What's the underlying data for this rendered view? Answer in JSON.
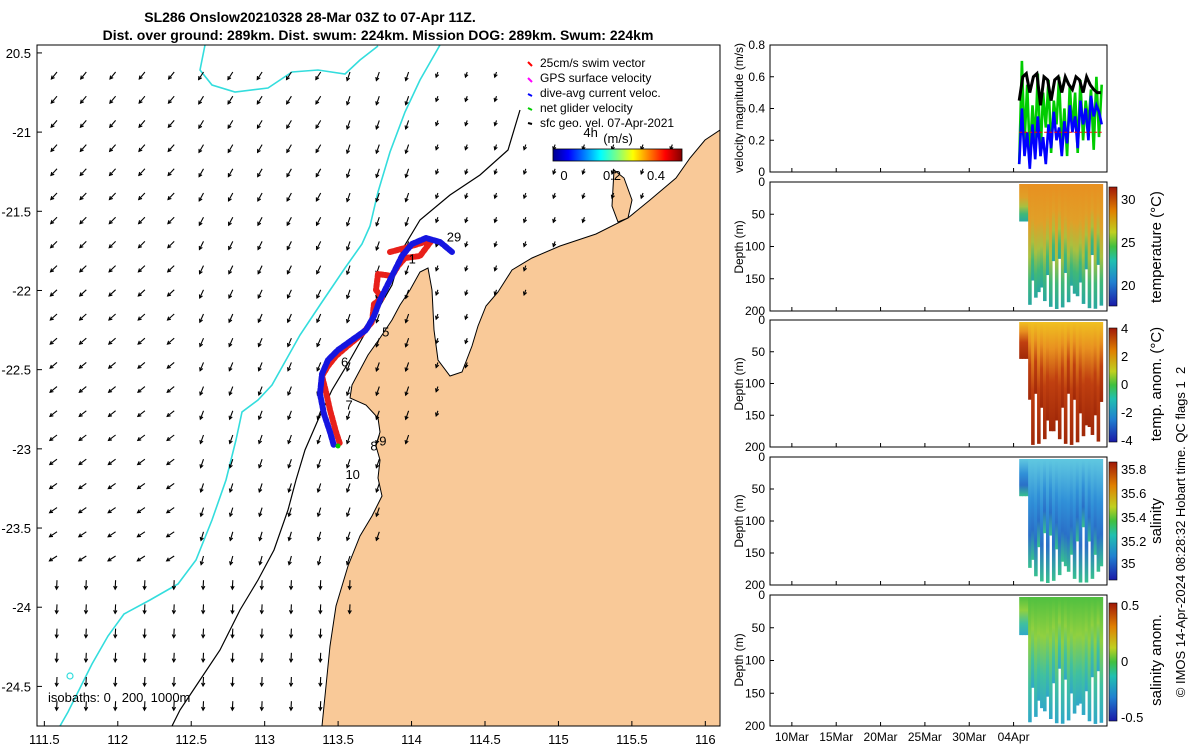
{
  "title": {
    "line1": "SL286 Onslow20210328 28-Mar 03Z to 07-Apr 11Z.",
    "line2": "Dist. over ground: 289km. Dist. swum: 224km. Mission DOG: 289km. Swum: 224km"
  },
  "map": {
    "lon_ticks": [
      "111.5",
      "112",
      "112.5",
      "113",
      "113.5",
      "114",
      "114.5",
      "115",
      "115.5",
      "116"
    ],
    "lat_ticks": [
      "20.5",
      "-21",
      "-21.5",
      "-22",
      "-22.5",
      "-23",
      "-23.5",
      "-24",
      "-24.5"
    ],
    "lon_range": [
      111.45,
      116.1
    ],
    "lat_range": [
      -24.75,
      -20.45
    ],
    "legend": [
      {
        "label": "25cm/s swim vector",
        "color": "#ff0000"
      },
      {
        "label": "GPS surface velocity",
        "color": "#ff00ff"
      },
      {
        "label": "dive-avg current veloc.",
        "color": "#0000ff"
      },
      {
        "label": "net glider velocity",
        "color": "#00cc00"
      },
      {
        "label": "sfc geo. vel. 07-Apr-2021",
        "color": "#000000"
      }
    ],
    "colorbar": {
      "label": "(m/s)",
      "ticks": [
        "0",
        "0.2",
        "0.4"
      ],
      "range": [
        -0.05,
        0.55
      ]
    },
    "isobaths_label": "isobaths: 0   200  1000m",
    "day_labels": [
      {
        "text": "1",
        "lon": 113.98,
        "lat": -21.83
      },
      {
        "text": "29",
        "lon": 114.24,
        "lat": -21.69
      },
      {
        "text": "5",
        "lon": 113.8,
        "lat": -22.29
      },
      {
        "text": "6",
        "lon": 113.52,
        "lat": -22.48
      },
      {
        "text": "7",
        "lon": 113.55,
        "lat": -22.75
      },
      {
        "text": "9",
        "lon": 113.78,
        "lat": -22.98
      },
      {
        "text": "8",
        "lon": 113.72,
        "lat": -23.01
      },
      {
        "text": "10",
        "lon": 113.55,
        "lat": -23.19
      },
      {
        "text": "4h",
        "lon": 115.17,
        "lat": -21.03
      }
    ],
    "colors": {
      "land": "#f9c998",
      "coastline": "#000000",
      "isobath_1000": "#33dddd",
      "track_red": "#e8201a",
      "track_blue": "#1515e0"
    }
  },
  "chart_data": [
    {
      "type": "line",
      "title": "velocity magnitude",
      "ylabel": "velocity magnitude (m/s)",
      "ylim": [
        0,
        0.8
      ],
      "yticks": [
        "0",
        "0.2",
        "0.4",
        "0.6",
        "0.8"
      ],
      "xlim_days": [
        0,
        38
      ],
      "series": [
        {
          "name": "net glider velocity",
          "color": "#00cc00",
          "x": [
            28.1,
            28.4,
            28.7,
            29.0,
            29.3,
            29.6,
            29.9,
            30.2,
            30.5,
            30.8,
            31.1,
            31.4,
            31.7,
            32.0,
            32.3,
            32.6,
            32.9,
            33.2,
            33.5,
            33.8,
            34.1,
            34.4,
            34.7,
            35.0,
            35.3,
            35.6,
            35.9,
            36.2,
            36.5,
            36.8,
            37.1,
            37.4
          ],
          "values": [
            0.05,
            0.7,
            0.18,
            0.55,
            0.1,
            0.42,
            0.2,
            0.62,
            0.1,
            0.5,
            0.28,
            0.58,
            0.12,
            0.45,
            0.3,
            0.6,
            0.15,
            0.4,
            0.1,
            0.55,
            0.25,
            0.5,
            0.12,
            0.58,
            0.2,
            0.45,
            0.3,
            0.52,
            0.14,
            0.6,
            0.22,
            0.55
          ]
        },
        {
          "name": "dive-avg current veloc.",
          "color": "#0000ff",
          "x": [
            28.1,
            28.4,
            28.7,
            29.0,
            29.3,
            29.6,
            29.9,
            30.2,
            30.5,
            30.8,
            31.1,
            31.4,
            31.7,
            32.0,
            32.3,
            32.6,
            32.9,
            33.2,
            33.5,
            33.8,
            34.1,
            34.4,
            34.7,
            35.0,
            35.3,
            35.6,
            35.9,
            36.2,
            36.5,
            36.8,
            37.1,
            37.4
          ],
          "values": [
            0.05,
            0.4,
            0.1,
            0.25,
            0.02,
            0.3,
            0.08,
            0.35,
            0.1,
            0.22,
            0.05,
            0.3,
            0.15,
            0.38,
            0.2,
            0.28,
            0.1,
            0.32,
            0.18,
            0.42,
            0.25,
            0.35,
            0.15,
            0.45,
            0.3,
            0.4,
            0.2,
            0.48,
            0.35,
            0.42,
            0.38,
            0.3
          ]
        },
        {
          "name": "speed",
          "color": "#000000",
          "x": [
            28.1,
            28.5,
            28.9,
            29.3,
            29.7,
            30.1,
            30.5,
            30.9,
            31.3,
            31.7,
            32.1,
            32.5,
            32.9,
            33.3,
            33.7,
            34.1,
            34.5,
            34.9,
            35.3,
            35.7,
            36.1,
            36.5,
            36.9,
            37.3
          ],
          "values": [
            0.45,
            0.6,
            0.62,
            0.5,
            0.6,
            0.62,
            0.42,
            0.6,
            0.58,
            0.45,
            0.58,
            0.6,
            0.5,
            0.6,
            0.55,
            0.52,
            0.6,
            0.58,
            0.5,
            0.6,
            0.55,
            0.52,
            0.5,
            0.5
          ]
        },
        {
          "name": "25cm/s swim",
          "color": "#ff0000",
          "x": [
            28.1,
            37.4
          ],
          "values": [
            0.25,
            0.25
          ]
        }
      ]
    },
    {
      "type": "heatmap",
      "ylabel": "Depth (m)",
      "cbar_label": "temperature (°C)",
      "cbar_ticks": [
        "30",
        "25",
        "20"
      ],
      "cbar_range": [
        18,
        31
      ],
      "ylim": [
        0,
        200
      ],
      "yticks": [
        "0",
        "50",
        "100",
        "150",
        "200"
      ],
      "xlim_days": [
        0,
        38
      ]
    },
    {
      "type": "heatmap",
      "ylabel": "Depth (m)",
      "cbar_label": "temp. anom. (°C)",
      "cbar_ticks": [
        "4",
        "2",
        "0",
        "-2",
        "-4"
      ],
      "cbar_range": [
        -4,
        4
      ],
      "ylim": [
        0,
        200
      ],
      "yticks": [
        "0",
        "50",
        "100",
        "150",
        "200"
      ],
      "xlim_days": [
        0,
        38
      ]
    },
    {
      "type": "heatmap",
      "ylabel": "Depth (m)",
      "cbar_label": "salinity",
      "cbar_ticks": [
        "35.8",
        "35.6",
        "35.4",
        "35.2",
        "35"
      ],
      "cbar_range": [
        34.88,
        35.86
      ],
      "ylim": [
        0,
        200
      ],
      "yticks": [
        "0",
        "50",
        "100",
        "150",
        "200"
      ],
      "xlim_days": [
        0,
        38
      ]
    },
    {
      "type": "heatmap",
      "ylabel": "Depth (m)",
      "cbar_label": "salinity anom.",
      "cbar_ticks": [
        "0.5",
        "0",
        "-0.5"
      ],
      "cbar_range": [
        -0.5,
        0.5
      ],
      "ylim": [
        0,
        200
      ],
      "yticks": [
        "0",
        "50",
        "100",
        "150",
        "200"
      ],
      "xlim_days": [
        0,
        38
      ]
    }
  ],
  "time_axis": {
    "labels": [
      {
        "text": "10Mar",
        "day": 1
      },
      {
        "text": "15Mar",
        "day": 6
      },
      {
        "text": "20Mar",
        "day": 11
      },
      {
        "text": "25Mar",
        "day": 16
      },
      {
        "text": "30Mar",
        "day": 21
      },
      {
        "text": "04Apr",
        "day": 26
      }
    ]
  },
  "credit": "© IMOS 14-Apr-2024 08:28:32 Hobart time. QC flags 1  2"
}
